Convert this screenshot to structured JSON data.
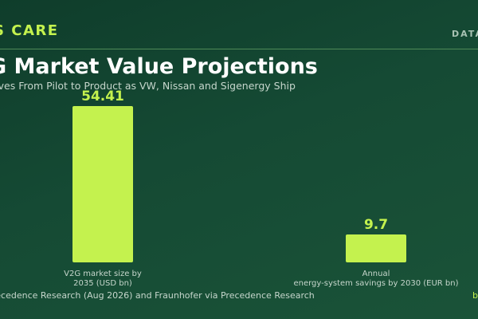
{
  "header": {
    "brand": "S CARE",
    "top_right": "DATA"
  },
  "title": "G Market Value Projections",
  "subtitle": "aves From Pilot to Product as VW, Nissan and Sigenergy Ship",
  "source": "recedence Research (Aug 2026) and Fraunhofer via Precedence Research",
  "corner_text": "b",
  "colors": {
    "bar": "#c4f24e",
    "value_label": "#c4f24e",
    "category_label": "#c6d6cc",
    "background": "#154a34"
  },
  "chart_data": {
    "type": "bar",
    "categories": [
      [
        "V2G market size by",
        "2035 (USD bn)"
      ],
      [
        "Annual",
        "energy-system savings by 2030 (EUR bn)"
      ]
    ],
    "values": [
      54.41,
      9.7
    ],
    "value_labels": [
      "54.41",
      "9.7"
    ],
    "ylim": [
      0,
      54.41
    ],
    "grid": false
  }
}
